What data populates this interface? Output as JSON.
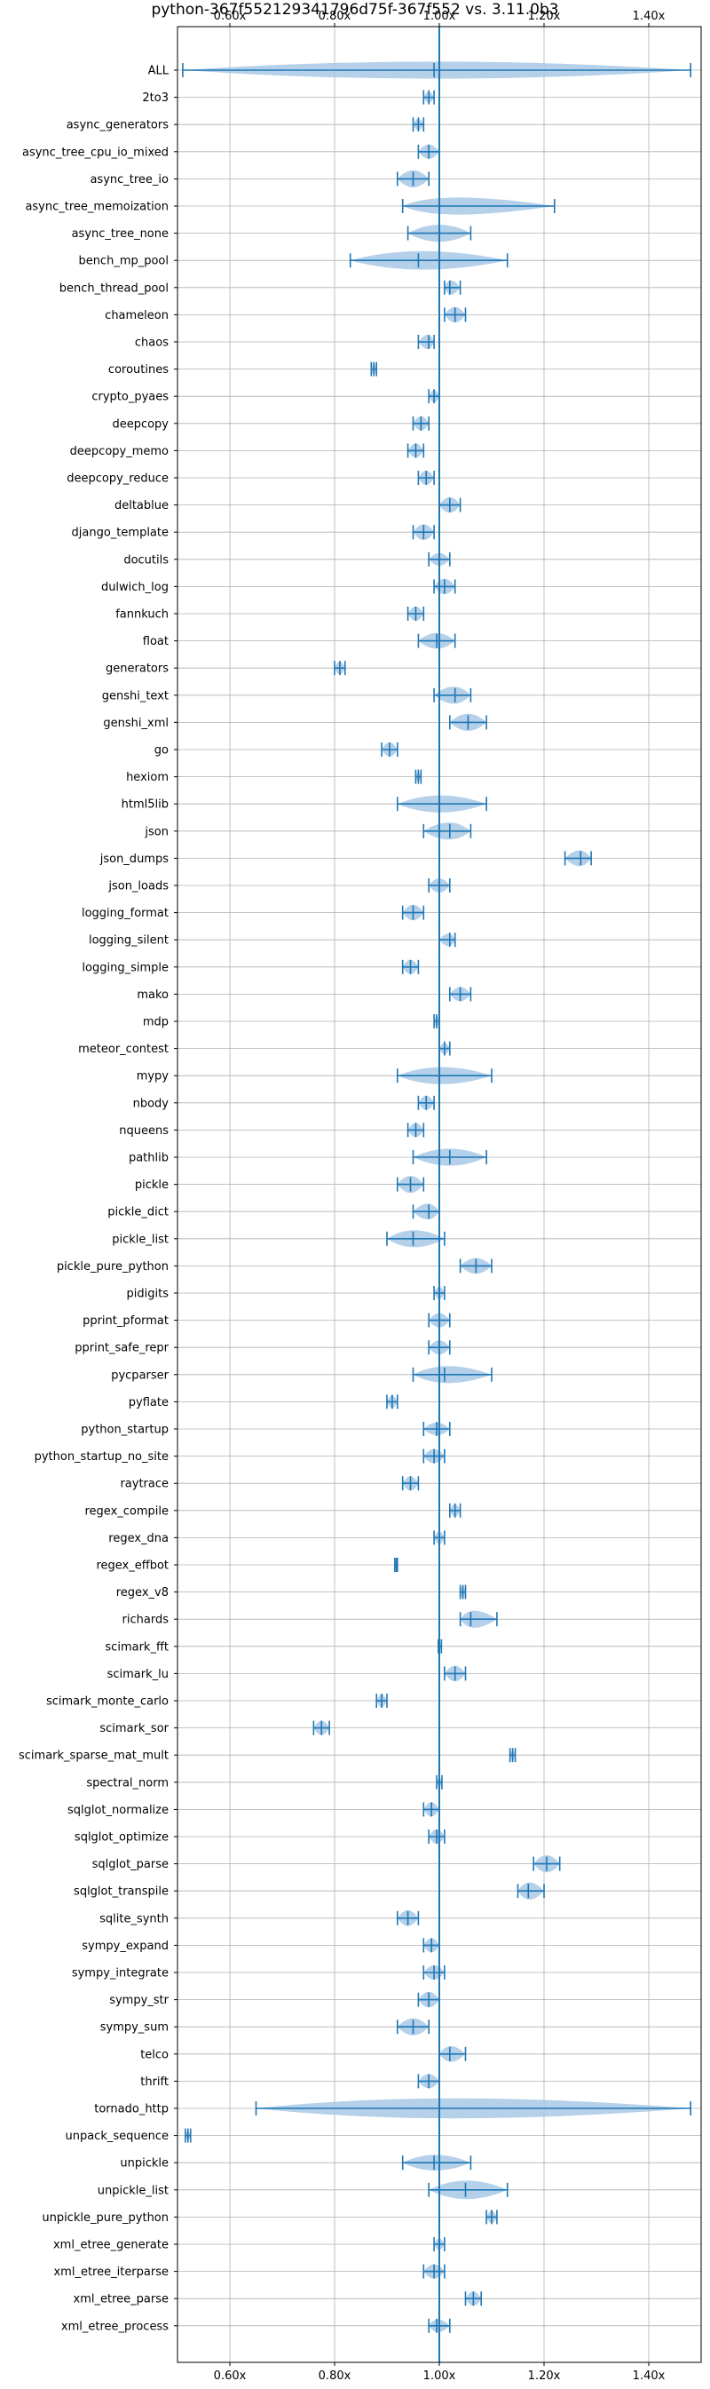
{
  "chart_data": {
    "type": "violin",
    "title": "python-367f552129341796d75f-367f552 vs. 3.11.0b3",
    "orientation": "horizontal",
    "xlim": [
      0.5,
      1.5
    ],
    "x_ticks": [
      0.6,
      0.8,
      1.0,
      1.2,
      1.4
    ],
    "x_tick_labels": [
      "0.60x",
      "0.80x",
      "1.00x",
      "1.20x",
      "1.40x"
    ],
    "x_tick_positions": [
      "top",
      "bottom"
    ],
    "reference_line": 1.0,
    "grid": true,
    "color": "#1f77b4",
    "fill_color": "#a8c8e5",
    "benchmarks": [
      {
        "name": "ALL",
        "min": 0.51,
        "max": 1.48,
        "mean": 0.99,
        "w": 12
      },
      {
        "name": "2to3",
        "min": 0.97,
        "max": 0.99,
        "mean": 0.98,
        "w": 8
      },
      {
        "name": "async_generators",
        "min": 0.95,
        "max": 0.97,
        "mean": 0.96,
        "w": 8
      },
      {
        "name": "async_tree_cpu_io_mixed",
        "min": 0.96,
        "max": 1.0,
        "mean": 0.98,
        "w": 10
      },
      {
        "name": "async_tree_io",
        "min": 0.92,
        "max": 0.98,
        "mean": 0.95,
        "w": 12
      },
      {
        "name": "async_tree_memoization",
        "min": 0.93,
        "max": 1.22,
        "mean": 1.0,
        "w": 12
      },
      {
        "name": "async_tree_none",
        "min": 0.94,
        "max": 1.06,
        "mean": 1.0,
        "w": 12
      },
      {
        "name": "bench_mp_pool",
        "min": 0.83,
        "max": 1.13,
        "mean": 0.96,
        "w": 13
      },
      {
        "name": "bench_thread_pool",
        "min": 1.01,
        "max": 1.04,
        "mean": 1.02,
        "w": 10
      },
      {
        "name": "chameleon",
        "min": 1.01,
        "max": 1.05,
        "mean": 1.03,
        "w": 11
      },
      {
        "name": "chaos",
        "min": 0.96,
        "max": 0.99,
        "mean": 0.98,
        "w": 10
      },
      {
        "name": "coroutines",
        "min": 0.87,
        "max": 0.88,
        "mean": 0.875,
        "w": 8
      },
      {
        "name": "crypto_pyaes",
        "min": 0.98,
        "max": 1.0,
        "mean": 0.99,
        "w": 9
      },
      {
        "name": "deepcopy",
        "min": 0.95,
        "max": 0.98,
        "mean": 0.965,
        "w": 10
      },
      {
        "name": "deepcopy_memo",
        "min": 0.94,
        "max": 0.97,
        "mean": 0.955,
        "w": 10
      },
      {
        "name": "deepcopy_reduce",
        "min": 0.96,
        "max": 0.99,
        "mean": 0.975,
        "w": 10
      },
      {
        "name": "deltablue",
        "min": 1.0,
        "max": 1.04,
        "mean": 1.02,
        "w": 11
      },
      {
        "name": "django_template",
        "min": 0.95,
        "max": 0.99,
        "mean": 0.97,
        "w": 11
      },
      {
        "name": "docutils",
        "min": 0.98,
        "max": 1.02,
        "mean": 1.0,
        "w": 9
      },
      {
        "name": "dulwich_log",
        "min": 0.99,
        "max": 1.03,
        "mean": 1.01,
        "w": 11
      },
      {
        "name": "fannkuch",
        "min": 0.94,
        "max": 0.97,
        "mean": 0.955,
        "w": 10
      },
      {
        "name": "float",
        "min": 0.96,
        "max": 1.03,
        "mean": 0.995,
        "w": 11
      },
      {
        "name": "generators",
        "min": 0.8,
        "max": 0.82,
        "mean": 0.81,
        "w": 9
      },
      {
        "name": "genshi_text",
        "min": 0.99,
        "max": 1.06,
        "mean": 1.03,
        "w": 12
      },
      {
        "name": "genshi_xml",
        "min": 1.02,
        "max": 1.09,
        "mean": 1.055,
        "w": 12
      },
      {
        "name": "go",
        "min": 0.89,
        "max": 0.92,
        "mean": 0.905,
        "w": 10
      },
      {
        "name": "hexiom",
        "min": 0.955,
        "max": 0.965,
        "mean": 0.96,
        "w": 7
      },
      {
        "name": "html5lib",
        "min": 0.92,
        "max": 1.09,
        "mean": 1.0,
        "w": 12
      },
      {
        "name": "json",
        "min": 0.97,
        "max": 1.06,
        "mean": 1.02,
        "w": 12
      },
      {
        "name": "json_dumps",
        "min": 1.24,
        "max": 1.29,
        "mean": 1.27,
        "w": 11
      },
      {
        "name": "json_loads",
        "min": 0.98,
        "max": 1.02,
        "mean": 1.0,
        "w": 10
      },
      {
        "name": "logging_format",
        "min": 0.93,
        "max": 0.97,
        "mean": 0.95,
        "w": 11
      },
      {
        "name": "logging_silent",
        "min": 1.0,
        "max": 1.03,
        "mean": 1.02,
        "w": 9
      },
      {
        "name": "logging_simple",
        "min": 0.93,
        "max": 0.96,
        "mean": 0.945,
        "w": 10
      },
      {
        "name": "mako",
        "min": 1.02,
        "max": 1.06,
        "mean": 1.04,
        "w": 10
      },
      {
        "name": "mdp",
        "min": 0.99,
        "max": 1.0,
        "mean": 0.995,
        "w": 8
      },
      {
        "name": "meteor_contest",
        "min": 1.0,
        "max": 1.02,
        "mean": 1.01,
        "w": 8
      },
      {
        "name": "mypy",
        "min": 0.92,
        "max": 1.1,
        "mean": 1.0,
        "w": 12
      },
      {
        "name": "nbody",
        "min": 0.96,
        "max": 0.99,
        "mean": 0.975,
        "w": 10
      },
      {
        "name": "nqueens",
        "min": 0.94,
        "max": 0.97,
        "mean": 0.955,
        "w": 10
      },
      {
        "name": "pathlib",
        "min": 0.95,
        "max": 1.09,
        "mean": 1.02,
        "w": 12
      },
      {
        "name": "pickle",
        "min": 0.92,
        "max": 0.97,
        "mean": 0.945,
        "w": 12
      },
      {
        "name": "pickle_dict",
        "min": 0.95,
        "max": 1.0,
        "mean": 0.98,
        "w": 11
      },
      {
        "name": "pickle_list",
        "min": 0.9,
        "max": 1.01,
        "mean": 0.95,
        "w": 12
      },
      {
        "name": "pickle_pure_python",
        "min": 1.04,
        "max": 1.1,
        "mean": 1.07,
        "w": 11
      },
      {
        "name": "pidigits",
        "min": 0.99,
        "max": 1.01,
        "mean": 1.0,
        "w": 9
      },
      {
        "name": "pprint_pformat",
        "min": 0.98,
        "max": 1.02,
        "mean": 1.0,
        "w": 10
      },
      {
        "name": "pprint_safe_repr",
        "min": 0.98,
        "max": 1.02,
        "mean": 1.0,
        "w": 10
      },
      {
        "name": "pycparser",
        "min": 0.95,
        "max": 1.1,
        "mean": 1.01,
        "w": 12
      },
      {
        "name": "pyflate",
        "min": 0.9,
        "max": 0.92,
        "mean": 0.91,
        "w": 9
      },
      {
        "name": "python_startup",
        "min": 0.97,
        "max": 1.02,
        "mean": 0.995,
        "w": 9
      },
      {
        "name": "python_startup_no_site",
        "min": 0.97,
        "max": 1.01,
        "mean": 0.99,
        "w": 10
      },
      {
        "name": "raytrace",
        "min": 0.93,
        "max": 0.96,
        "mean": 0.945,
        "w": 10
      },
      {
        "name": "regex_compile",
        "min": 1.02,
        "max": 1.04,
        "mean": 1.03,
        "w": 9
      },
      {
        "name": "regex_dna",
        "min": 0.99,
        "max": 1.01,
        "mean": 1.0,
        "w": 9
      },
      {
        "name": "regex_effbot",
        "min": 0.915,
        "max": 0.92,
        "mean": 0.918,
        "w": 6
      },
      {
        "name": "regex_v8",
        "min": 1.04,
        "max": 1.05,
        "mean": 1.045,
        "w": 8
      },
      {
        "name": "richards",
        "min": 1.04,
        "max": 1.11,
        "mean": 1.06,
        "w": 12
      },
      {
        "name": "scimark_fft",
        "min": 0.998,
        "max": 1.004,
        "mean": 1.0,
        "w": 6
      },
      {
        "name": "scimark_lu",
        "min": 1.01,
        "max": 1.05,
        "mean": 1.03,
        "w": 11
      },
      {
        "name": "scimark_monte_carlo",
        "min": 0.88,
        "max": 0.9,
        "mean": 0.89,
        "w": 9
      },
      {
        "name": "scimark_sor",
        "min": 0.76,
        "max": 0.79,
        "mean": 0.775,
        "w": 10
      },
      {
        "name": "scimark_sparse_mat_mult",
        "min": 1.135,
        "max": 1.145,
        "mean": 1.14,
        "w": 7
      },
      {
        "name": "spectral_norm",
        "min": 0.995,
        "max": 1.005,
        "mean": 1.0,
        "w": 7
      },
      {
        "name": "sqlglot_normalize",
        "min": 0.97,
        "max": 1.0,
        "mean": 0.985,
        "w": 10
      },
      {
        "name": "sqlglot_optimize",
        "min": 0.98,
        "max": 1.01,
        "mean": 0.995,
        "w": 10
      },
      {
        "name": "sqlglot_parse",
        "min": 1.18,
        "max": 1.23,
        "mean": 1.205,
        "w": 12
      },
      {
        "name": "sqlglot_transpile",
        "min": 1.15,
        "max": 1.2,
        "mean": 1.17,
        "w": 12
      },
      {
        "name": "sqlite_synth",
        "min": 0.92,
        "max": 0.96,
        "mean": 0.94,
        "w": 11
      },
      {
        "name": "sympy_expand",
        "min": 0.97,
        "max": 1.0,
        "mean": 0.985,
        "w": 10
      },
      {
        "name": "sympy_integrate",
        "min": 0.97,
        "max": 1.01,
        "mean": 0.99,
        "w": 10
      },
      {
        "name": "sympy_str",
        "min": 0.96,
        "max": 1.0,
        "mean": 0.98,
        "w": 11
      },
      {
        "name": "sympy_sum",
        "min": 0.92,
        "max": 0.98,
        "mean": 0.95,
        "w": 12
      },
      {
        "name": "telco",
        "min": 1.0,
        "max": 1.05,
        "mean": 1.02,
        "w": 11
      },
      {
        "name": "thrift",
        "min": 0.96,
        "max": 1.0,
        "mean": 0.98,
        "w": 10
      },
      {
        "name": "tornado_http",
        "min": 0.65,
        "max": 1.48,
        "mean": 1.0,
        "w": 15
      },
      {
        "name": "unpack_sequence",
        "min": 0.515,
        "max": 0.525,
        "mean": 0.52,
        "w": 7
      },
      {
        "name": "unpickle",
        "min": 0.93,
        "max": 1.06,
        "mean": 0.99,
        "w": 11
      },
      {
        "name": "unpickle_list",
        "min": 0.98,
        "max": 1.13,
        "mean": 1.05,
        "w": 13
      },
      {
        "name": "unpickle_pure_python",
        "min": 1.09,
        "max": 1.11,
        "mean": 1.1,
        "w": 9
      },
      {
        "name": "xml_etree_generate",
        "min": 0.99,
        "max": 1.01,
        "mean": 1.0,
        "w": 8
      },
      {
        "name": "xml_etree_iterparse",
        "min": 0.97,
        "max": 1.01,
        "mean": 0.99,
        "w": 10
      },
      {
        "name": "xml_etree_parse",
        "min": 1.05,
        "max": 1.08,
        "mean": 1.065,
        "w": 10
      },
      {
        "name": "xml_etree_process",
        "min": 0.98,
        "max": 1.02,
        "mean": 0.995,
        "w": 9
      }
    ]
  }
}
